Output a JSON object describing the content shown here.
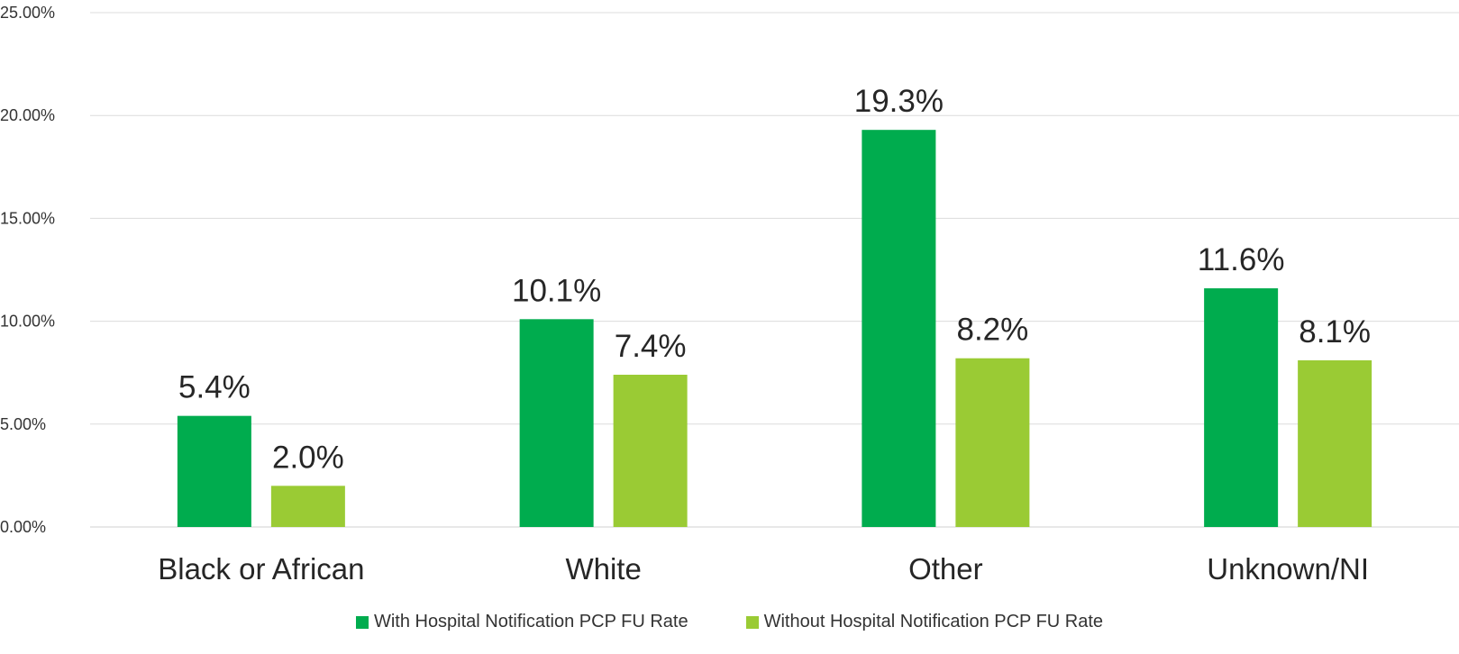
{
  "chart_data": {
    "type": "bar",
    "categories": [
      "Black or African",
      "White",
      "Other",
      "Unknown/NI"
    ],
    "series": [
      {
        "name": "With Hospital Notification PCP FU Rate",
        "values": [
          5.4,
          10.1,
          19.3,
          11.6
        ],
        "labels": [
          "5.4%",
          "10.1%",
          "19.3%",
          "11.6%"
        ],
        "color": "#00AC4E"
      },
      {
        "name": "Without Hospital Notification PCP FU Rate",
        "values": [
          2.0,
          7.4,
          8.2,
          8.1
        ],
        "labels": [
          "2.0%",
          "7.4%",
          "8.2%",
          "8.1%"
        ],
        "color": "#9ACB34"
      }
    ],
    "ylim": [
      0,
      25
    ],
    "yticks": [
      "0.00%",
      "5.00%",
      "10.00%",
      "15.00%",
      "20.00%",
      "25.00%"
    ],
    "grid": true,
    "legend_position": "bottom",
    "title": "",
    "xlabel": "",
    "ylabel": ""
  }
}
